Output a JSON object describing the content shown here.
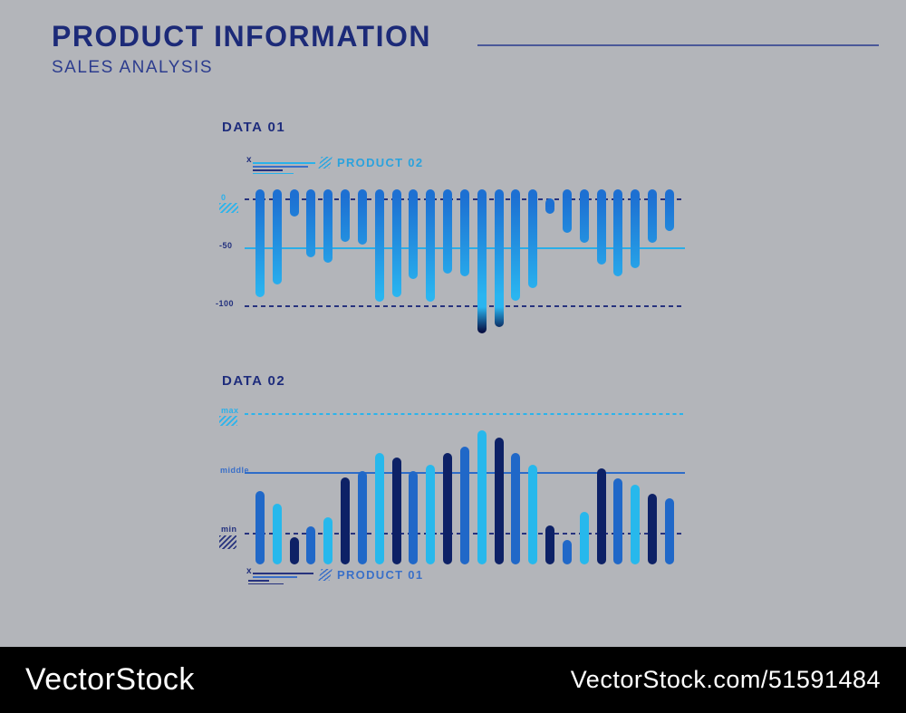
{
  "header": {
    "title": "PRODUCT INFORMATION",
    "subtitle": "SALES ANALYSIS"
  },
  "footer": {
    "brand": "VectorStock",
    "credit": "VectorStock.com/51591484"
  },
  "colors": {
    "background": "#b3b5ba",
    "navy_title": "#1c2a78",
    "royal_blue": "#2068c8",
    "cyan": "#27b8ec",
    "dark_navy_bar": "#0d2166",
    "deep_gradient_end": "#071044",
    "footer_bg": "#000000",
    "footer_text": "#ffffff"
  },
  "deco": {
    "x_mark": "x"
  },
  "chart_data": [
    {
      "type": "bar",
      "title": "DATA 01",
      "orientation": "hanging-from-zero",
      "legend": [
        {
          "label": "PRODUCT 02",
          "swatch": "hatch-cyan"
        }
      ],
      "legend_position": "top",
      "ylim": [
        0,
        -125
      ],
      "gridlines": [
        {
          "label": "0",
          "value": 0,
          "style": "dashed-navy"
        },
        {
          "label": "-50",
          "value": -50,
          "style": "solid-cyan"
        },
        {
          "label": "-100",
          "value": -100,
          "style": "dashed-navy"
        }
      ],
      "bar_color": "blue-to-cyan gradient, deepest bars end dark navy",
      "values": [
        -92,
        -80,
        -17,
        -55,
        -60,
        -40,
        -43,
        -96,
        -92,
        -75,
        -96,
        -70,
        -72,
        -125,
        -119,
        -95,
        -83,
        -14,
        -32,
        -41,
        -61,
        -72,
        -65,
        -41,
        -30
      ],
      "cap_overshoot_units": 8,
      "flat_top_index": 17
    },
    {
      "type": "bar",
      "title": "DATA 02",
      "orientation": "rising-from-baseline",
      "legend": [
        {
          "label": "PRODUCT 01",
          "swatch": "hatch-blue"
        }
      ],
      "legend_position": "bottom",
      "ylim": [
        0,
        110
      ],
      "gridlines": [
        {
          "label": "max",
          "value": 100,
          "style": "dashed-cyan"
        },
        {
          "label": "middle",
          "value": 60,
          "style": "solid-royal"
        },
        {
          "label": "min",
          "value": 20,
          "style": "dashed-navy"
        }
      ],
      "color_cycle": [
        "royal",
        "cyan",
        "navy"
      ],
      "values": [
        49,
        40,
        18,
        25,
        31,
        58,
        62,
        74,
        71,
        62,
        66,
        74,
        78,
        89,
        84,
        74,
        66,
        26,
        16,
        35,
        64,
        57,
        53,
        47,
        44
      ]
    }
  ]
}
